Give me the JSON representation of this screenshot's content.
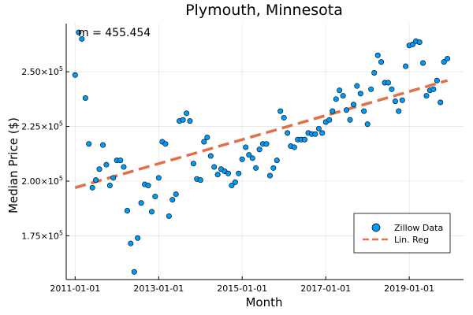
{
  "chart_data": {
    "type": "scatter",
    "title": "Plymouth, Minnesota",
    "xlabel": "Month",
    "ylabel": "Median Price ($)",
    "annotation": "m = 455.454",
    "xlim": [
      "2010-10-15",
      "2020-04-20"
    ],
    "ylim": [
      155000,
      272000
    ],
    "x_ticks": [
      {
        "value": "2011-01-01",
        "label": "2011-01-01"
      },
      {
        "value": "2013-01-01",
        "label": "2013-01-01"
      },
      {
        "value": "2015-01-01",
        "label": "2015-01-01"
      },
      {
        "value": "2017-01-01",
        "label": "2017-01-01"
      },
      {
        "value": "2019-01-01",
        "label": "2019-01-01"
      }
    ],
    "y_ticks": [
      {
        "value": 175000,
        "mantissa": "1.75",
        "exp": "5"
      },
      {
        "value": 200000,
        "mantissa": "2.00",
        "exp": "5"
      },
      {
        "value": 225000,
        "mantissa": "2.25",
        "exp": "5"
      },
      {
        "value": 250000,
        "mantissa": "2.50",
        "exp": "5"
      }
    ],
    "grid": true,
    "legend_position": "bottom-right",
    "series": [
      {
        "name": "Zillow Data",
        "kind": "scatter",
        "color": "#009af9",
        "x": [
          "2011-01-01",
          "2011-02-01",
          "2011-03-01",
          "2011-04-01",
          "2011-05-01",
          "2011-06-01",
          "2011-07-01",
          "2011-08-01",
          "2011-09-01",
          "2011-10-01",
          "2011-11-01",
          "2011-12-01",
          "2012-01-01",
          "2012-02-01",
          "2012-03-01",
          "2012-04-01",
          "2012-05-01",
          "2012-06-01",
          "2012-07-01",
          "2012-08-01",
          "2012-09-01",
          "2012-10-01",
          "2012-11-01",
          "2012-12-01",
          "2013-01-01",
          "2013-02-01",
          "2013-03-01",
          "2013-04-01",
          "2013-05-01",
          "2013-06-01",
          "2013-07-01",
          "2013-08-01",
          "2013-09-01",
          "2013-10-01",
          "2013-11-01",
          "2013-12-01",
          "2014-01-01",
          "2014-02-01",
          "2014-03-01",
          "2014-04-01",
          "2014-05-01",
          "2014-06-01",
          "2014-07-01",
          "2014-08-01",
          "2014-09-01",
          "2014-10-01",
          "2014-11-01",
          "2014-12-01",
          "2015-01-01",
          "2015-02-01",
          "2015-03-01",
          "2015-04-01",
          "2015-05-01",
          "2015-06-01",
          "2015-07-01",
          "2015-08-01",
          "2015-09-01",
          "2015-10-01",
          "2015-11-01",
          "2015-12-01",
          "2016-01-01",
          "2016-02-01",
          "2016-03-01",
          "2016-04-01",
          "2016-05-01",
          "2016-06-01",
          "2016-07-01",
          "2016-08-01",
          "2016-09-01",
          "2016-10-01",
          "2016-11-01",
          "2016-12-01",
          "2017-01-01",
          "2017-02-01",
          "2017-03-01",
          "2017-04-01",
          "2017-05-01",
          "2017-06-01",
          "2017-07-01",
          "2017-08-01",
          "2017-09-01",
          "2017-10-01",
          "2017-11-01",
          "2017-12-01",
          "2018-01-01",
          "2018-02-01",
          "2018-03-01",
          "2018-04-01",
          "2018-05-01",
          "2018-06-01",
          "2018-07-01",
          "2018-08-01",
          "2018-09-01",
          "2018-10-01",
          "2018-11-01",
          "2018-12-01",
          "2019-01-01",
          "2019-02-01",
          "2019-03-01",
          "2019-04-01",
          "2019-05-01",
          "2019-06-01",
          "2019-07-01",
          "2019-08-01",
          "2019-09-01",
          "2019-10-01",
          "2019-11-01",
          "2019-12-01"
        ],
        "y": [
          248500,
          268000,
          265000,
          238000,
          217000,
          197000,
          200500,
          205500,
          216500,
          207500,
          198000,
          201500,
          209500,
          209500,
          206500,
          186500,
          171500,
          158500,
          174000,
          190000,
          198500,
          198000,
          186000,
          193000,
          201500,
          218000,
          217000,
          184000,
          191500,
          194000,
          227500,
          228000,
          231000,
          227500,
          208000,
          201000,
          200500,
          218000,
          220000,
          211500,
          206500,
          203000,
          205500,
          204500,
          203500,
          198000,
          199500,
          203500,
          210000,
          215500,
          212000,
          210500,
          206000,
          214500,
          217000,
          217000,
          202500,
          206000,
          209500,
          232000,
          229000,
          222000,
          216000,
          215500,
          219000,
          219000,
          219000,
          222000,
          221500,
          221500,
          224000,
          222000,
          227000,
          228000,
          232000,
          237500,
          241500,
          239000,
          232500,
          228000,
          235000,
          243500,
          240000,
          232000,
          226000,
          242000,
          249500,
          257500,
          254500,
          245000,
          245000,
          242000,
          236500,
          232000,
          237000,
          252500,
          262000,
          262500,
          264000,
          263500,
          254000,
          239000,
          241500,
          242000,
          246000,
          236000,
          254500,
          256000
        ]
      },
      {
        "name": "Lin. Reg",
        "kind": "line",
        "color": "#e26f46",
        "x": [
          "2011-01-01",
          "2019-12-01"
        ],
        "y": [
          197000,
          246000
        ]
      }
    ]
  }
}
